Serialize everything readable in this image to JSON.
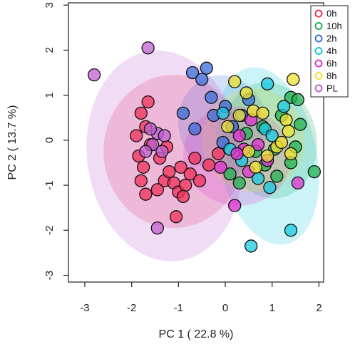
{
  "chart_data": {
    "type": "scatter",
    "title": "",
    "xlabel": "PC 1 ( 22.8 %)",
    "ylabel": "PC 2 ( 13.7 %)",
    "xlim": [
      -3.35,
      2.1
    ],
    "ylim": [
      -3.15,
      3.05
    ],
    "x_ticks": [
      "-3",
      "-2",
      "-1",
      "0",
      "1",
      "2"
    ],
    "y_ticks": [
      "-3",
      "-2",
      "-1",
      "0",
      "1",
      "2",
      "3"
    ],
    "legend_position": "top-right",
    "series": [
      {
        "name": "0h",
        "color": "#f0305a",
        "ellipse": {
          "cx": -1.1,
          "cy": -0.25,
          "rx": 1.5,
          "ry": 1.7,
          "angle": 0
        },
        "points": [
          [
            -1.8,
            0.6
          ],
          [
            -1.7,
            0.3
          ],
          [
            -1.9,
            0.1
          ],
          [
            -1.6,
            -0.1
          ],
          [
            -1.85,
            -0.35
          ],
          [
            -1.75,
            -0.6
          ],
          [
            -1.8,
            -0.9
          ],
          [
            -1.7,
            -1.2
          ],
          [
            -1.4,
            -0.4
          ],
          [
            -1.3,
            -0.9
          ],
          [
            -1.1,
            -0.95
          ],
          [
            -1.2,
            -0.7
          ],
          [
            -1.0,
            -1.15
          ],
          [
            -0.85,
            -1.0
          ],
          [
            -0.95,
            -0.6
          ],
          [
            -0.75,
            -0.75
          ],
          [
            -1.05,
            -1.7
          ],
          [
            -1.45,
            -1.1
          ],
          [
            -1.25,
            -0.15
          ],
          [
            -1.65,
            0.85
          ],
          [
            -0.65,
            -0.4
          ],
          [
            -0.55,
            -0.9
          ],
          [
            -0.35,
            -0.55
          ],
          [
            -0.15,
            -0.3
          ],
          [
            -0.9,
            -1.25
          ]
        ]
      },
      {
        "name": "10h",
        "color": "#20b050",
        "ellipse": {
          "cx": 0.95,
          "cy": 0.0,
          "rx": 1.0,
          "ry": 1.3,
          "angle": -10
        },
        "points": [
          [
            1.4,
            0.95
          ],
          [
            1.55,
            0.9
          ],
          [
            1.6,
            0.35
          ],
          [
            1.5,
            -0.15
          ],
          [
            1.4,
            -0.5
          ],
          [
            1.9,
            -0.7
          ],
          [
            1.1,
            -0.8
          ],
          [
            0.85,
            -0.55
          ],
          [
            0.65,
            -0.25
          ],
          [
            0.45,
            0.15
          ],
          [
            0.3,
            -0.95
          ],
          [
            0.1,
            -0.75
          ],
          [
            1.2,
            0.55
          ],
          [
            0.8,
            0.3
          ],
          [
            1.05,
            -0.2
          ]
        ]
      },
      {
        "name": "2h",
        "color": "#3a6ed8",
        "ellipse": {
          "cx": -0.05,
          "cy": 0.35,
          "rx": 0.95,
          "ry": 1.1,
          "angle": -15
        },
        "points": [
          [
            -0.7,
            1.5
          ],
          [
            -0.5,
            1.35
          ],
          [
            -0.3,
            0.95
          ],
          [
            -0.9,
            0.6
          ],
          [
            -0.65,
            0.25
          ],
          [
            -0.25,
            0.55
          ],
          [
            0.0,
            0.75
          ],
          [
            0.15,
            0.3
          ],
          [
            -0.05,
            -0.05
          ],
          [
            0.35,
            0.55
          ],
          [
            -0.4,
            1.6
          ],
          [
            0.5,
            0.9
          ]
        ]
      },
      {
        "name": "4h",
        "color": "#18c8e0",
        "ellipse": {
          "cx": 0.9,
          "cy": -0.35,
          "rx": 1.05,
          "ry": 2.0,
          "angle": -12
        },
        "points": [
          [
            0.55,
            -2.35
          ],
          [
            1.4,
            -2.0
          ],
          [
            0.95,
            -1.05
          ],
          [
            0.7,
            -0.85
          ],
          [
            0.9,
            1.25
          ],
          [
            0.85,
            0.25
          ],
          [
            0.35,
            -0.45
          ],
          [
            0.1,
            -0.2
          ],
          [
            -0.05,
            0.6
          ],
          [
            1.25,
            0.75
          ],
          [
            1.0,
            0.1
          ]
        ]
      },
      {
        "name": "6h",
        "color": "#e030d0",
        "ellipse": {
          "cx": 0.25,
          "cy": -0.35,
          "rx": 1.15,
          "ry": 1.1,
          "angle": 10
        },
        "points": [
          [
            0.2,
            -1.45
          ],
          [
            -0.1,
            -0.6
          ],
          [
            0.5,
            -0.7
          ],
          [
            0.3,
            0.1
          ],
          [
            0.55,
            0.45
          ],
          [
            0.7,
            -0.1
          ],
          [
            1.55,
            -0.95
          ],
          [
            0.9,
            -0.45
          ],
          [
            0.4,
            -0.2
          ],
          [
            0.25,
            -0.3
          ]
        ]
      },
      {
        "name": "8h",
        "color": "#f0e030",
        "ellipse": {
          "cx": 0.6,
          "cy": 0.0,
          "rx": 1.1,
          "ry": 1.15,
          "angle": 0
        },
        "points": [
          [
            0.2,
            1.3
          ],
          [
            0.45,
            1.05
          ],
          [
            0.6,
            0.65
          ],
          [
            0.8,
            0.6
          ],
          [
            1.45,
            1.35
          ],
          [
            1.3,
            0.45
          ],
          [
            1.35,
            0.2
          ],
          [
            1.1,
            -0.15
          ],
          [
            1.4,
            -0.3
          ],
          [
            0.9,
            -0.35
          ],
          [
            0.65,
            -0.6
          ],
          [
            0.5,
            -0.25
          ],
          [
            0.3,
            0.55
          ],
          [
            0.05,
            0.3
          ],
          [
            1.2,
            -0.05
          ]
        ]
      },
      {
        "name": "PL",
        "color": "#c060d0",
        "ellipse": {
          "cx": -1.3,
          "cy": -0.35,
          "rx": 1.65,
          "ry": 2.35,
          "angle": -8
        },
        "points": [
          [
            -2.8,
            1.45
          ],
          [
            -1.65,
            2.05
          ],
          [
            -1.45,
            0.15
          ],
          [
            -1.3,
            0.1
          ],
          [
            -1.55,
            -0.1
          ],
          [
            -1.35,
            -0.25
          ],
          [
            -1.45,
            -1.95
          ],
          [
            -1.6,
            0.25
          ],
          [
            -1.7,
            -0.25
          ]
        ]
      }
    ]
  }
}
